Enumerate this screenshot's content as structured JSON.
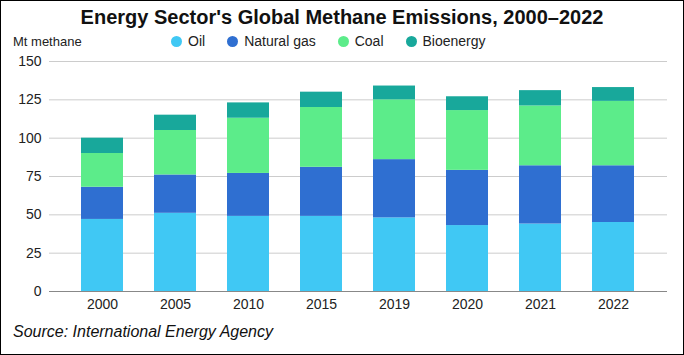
{
  "chart_data": {
    "type": "bar",
    "stacked": true,
    "title": "Energy Sector's Global Methane Emissions, 2000–2022",
    "y_label": "Mt methane",
    "source": "Source: International Energy Agency",
    "categories": [
      "2000",
      "2005",
      "2010",
      "2015",
      "2019",
      "2020",
      "2021",
      "2022"
    ],
    "series": [
      {
        "name": "Oil",
        "color": "#40c8f4",
        "values": [
          47,
          51,
          49,
          49,
          48,
          43,
          44,
          45
        ]
      },
      {
        "name": "Natural gas",
        "color": "#2f6fd1",
        "values": [
          21,
          25,
          28,
          32,
          38,
          36,
          38,
          37
        ]
      },
      {
        "name": "Coal",
        "color": "#5cec8a",
        "values": [
          22,
          29,
          36,
          39,
          39,
          39,
          39,
          42
        ]
      },
      {
        "name": "Bioenergy",
        "color": "#18a89b",
        "values": [
          10,
          10,
          10,
          10,
          9,
          9,
          10,
          9
        ]
      }
    ],
    "ylim": [
      0,
      150
    ],
    "yticks": [
      0,
      25,
      50,
      75,
      100,
      125,
      150
    ],
    "grid": true,
    "legend": "top"
  }
}
